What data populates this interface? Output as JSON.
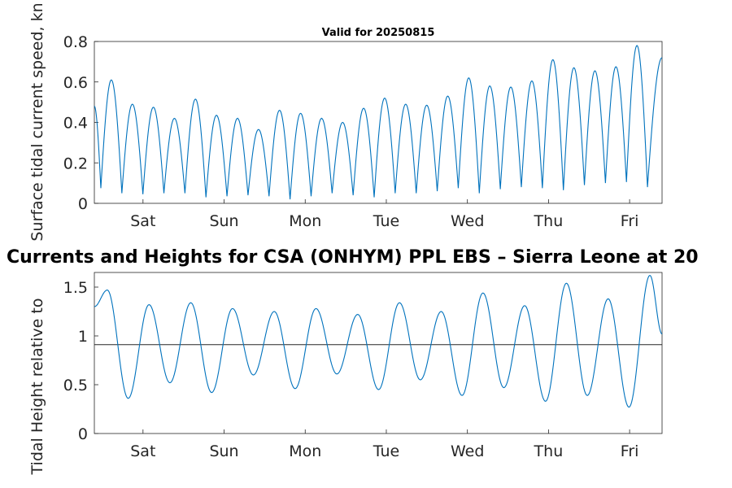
{
  "chart_data": [
    {
      "type": "line",
      "title": "Valid for 20250815",
      "ylabel": "Surface tidal current speed, kn",
      "xlabel": "",
      "ylim": [
        0,
        0.8
      ],
      "yticks": [
        "0",
        "0.2",
        "0.4",
        "0.6",
        "0.8"
      ],
      "xlim_days": [
        -0.6,
        6.4
      ],
      "xticks": [
        "Sat",
        "Sun",
        "Mon",
        "Tue",
        "Wed",
        "Thu",
        "Fri"
      ],
      "series": [
        {
          "color": "#0072BD",
          "peaks": [
            0.61,
            0.49,
            0.475,
            0.42,
            0.515,
            0.435,
            0.42,
            0.365,
            0.46,
            0.445,
            0.42,
            0.4,
            0.47,
            0.52,
            0.49,
            0.485,
            0.53,
            0.62,
            0.58,
            0.575,
            0.605,
            0.71,
            0.67,
            0.655,
            0.675,
            0.78
          ],
          "troughs": [
            0.075,
            0.05,
            0.045,
            0.05,
            0.05,
            0.03,
            0.035,
            0.04,
            0.035,
            0.02,
            0.035,
            0.05,
            0.04,
            0.03,
            0.05,
            0.05,
            0.06,
            0.075,
            0.05,
            0.07,
            0.08,
            0.075,
            0.065,
            0.09,
            0.1,
            0.105,
            0.08,
            0.11
          ],
          "start_value": 0.48,
          "end_value": 0.72
        }
      ],
      "grid": false
    },
    {
      "type": "line",
      "title": "Currents and Heights for CSA (ONHYM) PPL EBS  – Sierra Leone at 20",
      "ylabel": "Tidal Height relative to",
      "xlabel": "",
      "ylim": [
        0,
        1.65
      ],
      "yticks": [
        "0",
        "0.5",
        "1",
        "1.5"
      ],
      "xlim_days": [
        -0.6,
        6.4
      ],
      "xticks": [
        "Sat",
        "Sun",
        "Mon",
        "Tue",
        "Wed",
        "Thu",
        "Fri"
      ],
      "reference_level": 0.91,
      "series": [
        {
          "color": "#0072BD",
          "highs": [
            1.47,
            1.32,
            1.34,
            1.28,
            1.25,
            1.28,
            1.22,
            1.34,
            1.25,
            1.44,
            1.31,
            1.54,
            1.38,
            1.62
          ],
          "lows": [
            0.36,
            0.52,
            0.42,
            0.6,
            0.46,
            0.61,
            0.45,
            0.55,
            0.39,
            0.47,
            0.33,
            0.39,
            0.27
          ],
          "start_value": 1.3,
          "end_value": 1.02
        }
      ],
      "grid": false
    }
  ]
}
